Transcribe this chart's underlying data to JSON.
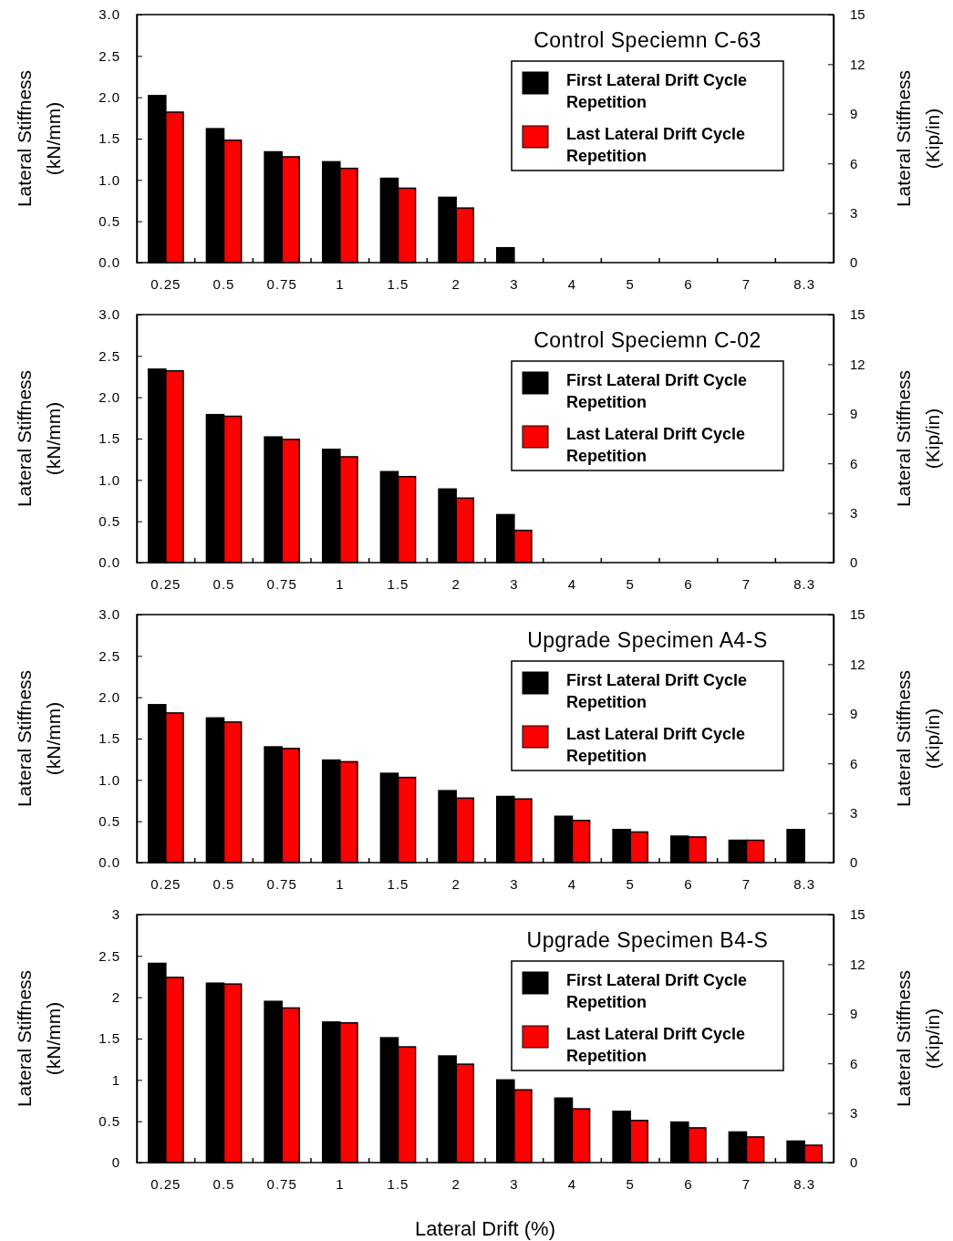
{
  "chart_data": [
    {
      "type": "bar",
      "title": "Control Speciemn C-63",
      "ylabel": "Lateral Stiffness\n(kN/mm)",
      "y2label": "Lateral Stiffness\n(Kip/in)",
      "categories": [
        "0.25",
        "0.5",
        "0.75",
        "1",
        "1.5",
        "2",
        "3",
        "4",
        "5",
        "6",
        "7",
        "8.3"
      ],
      "series": [
        {
          "name": "First Lateral Drift Cycle Repetition",
          "color": "#000000",
          "values": [
            2.02,
            1.62,
            1.34,
            1.22,
            1.02,
            0.79,
            0.18,
            null,
            null,
            null,
            null,
            null
          ]
        },
        {
          "name": "Last Lateral Drift Cycle Repetition",
          "color": "#ff0000",
          "values": [
            1.82,
            1.48,
            1.28,
            1.14,
            0.9,
            0.66,
            null,
            null,
            null,
            null,
            null,
            null
          ]
        }
      ],
      "ylim": [
        0,
        3
      ],
      "yticks": [
        {
          "value": 0,
          "label": "0.0"
        },
        0.5,
        {
          "value": 1,
          "label": "1.0"
        },
        1.5,
        {
          "value": 2,
          "label": "2.0"
        },
        2.5,
        {
          "value": 3,
          "label": "3.0"
        }
      ],
      "y2lim": [
        0,
        15
      ],
      "y2ticks": [
        0,
        3,
        6,
        9,
        12,
        15
      ],
      "legend": "top right"
    },
    {
      "type": "bar",
      "title": "Control Speciemn C-02",
      "ylabel": "Lateral Stiffness\n(kN/mm)",
      "y2label": "Lateral Stiffness\n(Kip/in)",
      "categories": [
        "0.25",
        "0.5",
        "0.75",
        "1",
        "1.5",
        "2",
        "3",
        "4",
        "5",
        "6",
        "7",
        "8.3"
      ],
      "series": [
        {
          "name": "First Lateral Drift Cycle Repetition",
          "color": "#000000",
          "values": [
            2.34,
            1.79,
            1.52,
            1.37,
            1.1,
            0.89,
            0.58,
            null,
            null,
            null,
            null,
            null
          ]
        },
        {
          "name": "Last Lateral Drift Cycle Repetition",
          "color": "#ff0000",
          "values": [
            2.32,
            1.77,
            1.49,
            1.28,
            1.04,
            0.78,
            0.39,
            null,
            null,
            null,
            null,
            null
          ]
        }
      ],
      "ylim": [
        0,
        3
      ],
      "yticks": [
        {
          "value": 0,
          "label": "0.0"
        },
        0.5,
        {
          "value": 1,
          "label": "1.0"
        },
        1.5,
        {
          "value": 2,
          "label": "2.0"
        },
        2.5,
        {
          "value": 3,
          "label": "3.0"
        }
      ],
      "y2lim": [
        0,
        15
      ],
      "y2ticks": [
        0,
        3,
        6,
        9,
        12,
        15
      ],
      "legend": "top right"
    },
    {
      "type": "bar",
      "title": "Upgrade Specimen A4-S",
      "ylabel": "Lateral Stiffness\n(kN/mm)",
      "y2label": "Lateral Stiffness\n(Kip/in)",
      "categories": [
        "0.25",
        "0.5",
        "0.75",
        "1",
        "1.5",
        "2",
        "3",
        "4",
        "5",
        "6",
        "7",
        "8.3"
      ],
      "series": [
        {
          "name": "First Lateral Drift Cycle Repetition",
          "color": "#000000",
          "values": [
            1.91,
            1.75,
            1.4,
            1.24,
            1.08,
            0.87,
            0.8,
            0.56,
            0.4,
            0.32,
            0.27,
            0.4
          ]
        },
        {
          "name": "Last Lateral Drift Cycle Repetition",
          "color": "#ff0000",
          "values": [
            1.81,
            1.7,
            1.38,
            1.22,
            1.03,
            0.78,
            0.77,
            0.51,
            0.37,
            0.31,
            0.27,
            null
          ]
        }
      ],
      "ylim": [
        0,
        3
      ],
      "yticks": [
        {
          "value": 0,
          "label": "0.0"
        },
        0.5,
        {
          "value": 1,
          "label": "1.0"
        },
        1.5,
        {
          "value": 2,
          "label": "2.0"
        },
        2.5,
        {
          "value": 3,
          "label": "3.0"
        }
      ],
      "y2lim": [
        0,
        15
      ],
      "y2ticks": [
        0,
        3,
        6,
        9,
        12,
        15
      ],
      "legend": "top right"
    },
    {
      "type": "bar",
      "title": "Upgrade Specimen B4-S",
      "xlabel": "Lateral Drift (%)",
      "ylabel": "Lateral Stiffness\n(kN/mm)",
      "y2label": "Lateral Stiffness\n(Kip/in)",
      "categories": [
        "0.25",
        "0.5",
        "0.75",
        "1",
        "1.5",
        "2",
        "3",
        "4",
        "5",
        "6",
        "7",
        "8.3"
      ],
      "series": [
        {
          "name": "First Lateral Drift Cycle Repetition",
          "color": "#000000",
          "values": [
            2.41,
            2.17,
            1.95,
            1.7,
            1.51,
            1.29,
            1.0,
            0.78,
            0.62,
            0.49,
            0.37,
            0.26
          ]
        },
        {
          "name": "Last Lateral Drift Cycle Repetition",
          "color": "#ff0000",
          "values": [
            2.24,
            2.16,
            1.87,
            1.69,
            1.4,
            1.19,
            0.88,
            0.65,
            0.51,
            0.42,
            0.31,
            0.21
          ]
        }
      ],
      "ylim": [
        0,
        3
      ],
      "yticks": [
        0,
        0.5,
        1,
        1.5,
        2,
        2.5,
        3
      ],
      "y2lim": [
        0,
        15
      ],
      "y2ticks": [
        0,
        3,
        6,
        9,
        12,
        15
      ],
      "legend": "top right"
    }
  ]
}
